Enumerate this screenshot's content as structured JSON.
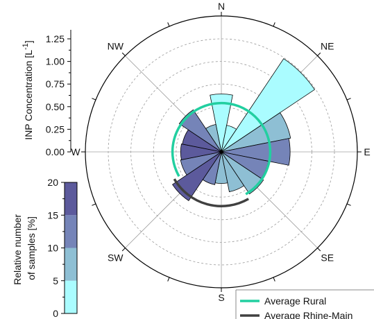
{
  "chart_data": {
    "type": "polar-bar",
    "radial_axis": {
      "label": "INP Concentration [L",
      "label_sup": "-1",
      "label_end": "]",
      "range": [
        0,
        1.25
      ],
      "ticks": [
        "0.00",
        "0.25",
        "0.50",
        "0.75",
        "1.00",
        "1.25"
      ],
      "tick_values": [
        0,
        0.25,
        0.5,
        0.75,
        1.0,
        1.25
      ]
    },
    "directions": [
      "N",
      "NE",
      "E",
      "SE",
      "S",
      "SW",
      "W",
      "NW"
    ],
    "sectors_deg": [
      0,
      22.5,
      45,
      67.5,
      90,
      112.5,
      135,
      157.5,
      180,
      202.5,
      225,
      247.5,
      270,
      292.5,
      315,
      337.5
    ],
    "sector_width_deg": 22.5,
    "concentration": [
      0.64,
      0.3,
      1.24,
      0.78,
      0.76,
      0.53,
      0.56,
      0.45,
      0.35,
      0.37,
      0.65,
      0.46,
      0.45,
      0.44,
      0.56,
      0.31
    ],
    "relative_samples_pct": [
      2,
      3,
      4,
      6,
      12,
      10,
      9,
      8,
      9,
      10,
      19,
      13,
      17,
      15,
      13,
      9
    ],
    "color_scale": {
      "label_line1": "Relative number",
      "label_line2": "of samples [%]",
      "range": [
        0,
        20
      ],
      "ticks": [
        "0",
        "5",
        "10",
        "15",
        "20"
      ],
      "tick_values": [
        0,
        5,
        10,
        15,
        20
      ],
      "bins": [
        {
          "min": 0,
          "max": 5,
          "color": "#aafcff"
        },
        {
          "min": 5,
          "max": 10,
          "color": "#8ebfd4"
        },
        {
          "min": 10,
          "max": 15,
          "color": "#7584b8"
        },
        {
          "min": 15,
          "max": 20,
          "color": "#5c5a9c"
        }
      ]
    },
    "averages": [
      {
        "name": "Average Rural",
        "value": 0.54,
        "color": "#22cfa0",
        "arc_from_deg": 0,
        "arc_to_deg": 360,
        "gap_from_deg": 150,
        "gap_to_deg": 240
      },
      {
        "name": "Average Rhine-Main",
        "value": 0.6,
        "color": "#404040",
        "arc_from_deg": 150,
        "arc_to_deg": 240
      }
    ],
    "grid": true,
    "legend_position": "bottom-right"
  }
}
